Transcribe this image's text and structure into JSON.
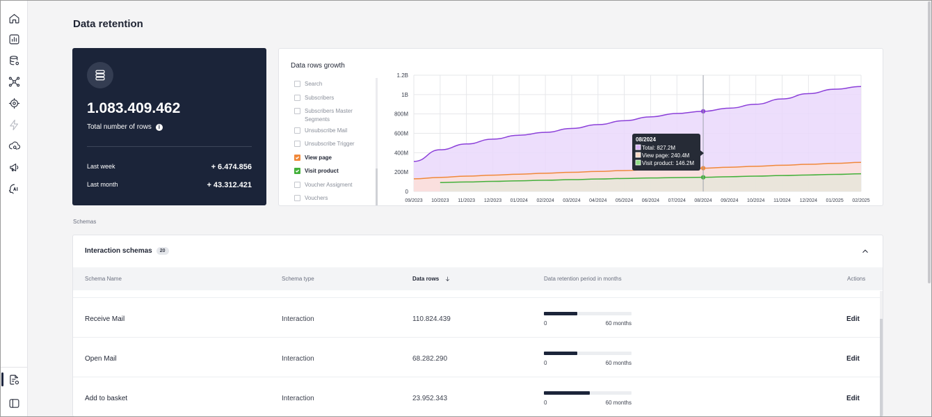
{
  "page": {
    "title": "Data retention"
  },
  "sidebar": {
    "icons": [
      "home-icon",
      "analytics-icon",
      "database-settings-icon",
      "network-icon",
      "target-icon",
      "lightning-icon",
      "cloud-search-icon",
      "megaphone-icon",
      "ai-icon",
      "retention-icon",
      "panel-toggle-icon"
    ]
  },
  "summary": {
    "total_value": "1.083.409.462",
    "total_label": "Total number of rows",
    "last_week_label": "Last week",
    "last_week_value": "+ 6.474.856",
    "last_month_label": "Last month",
    "last_month_value": "+ 43.312.421"
  },
  "chart_card": {
    "title": "Data rows growth",
    "legend": [
      {
        "label": "Search",
        "checked": false
      },
      {
        "label": "Subscribers",
        "checked": false
      },
      {
        "label": "Subscribers Master Segments",
        "checked": false
      },
      {
        "label": "Unsubscribe Mail",
        "checked": false
      },
      {
        "label": "Unsubscribe Trigger",
        "checked": false
      },
      {
        "label": "View page",
        "checked": true,
        "color": "#f0883a"
      },
      {
        "label": "Visit product",
        "checked": true,
        "color": "#43b03a"
      },
      {
        "label": "Voucher Assigment",
        "checked": false
      },
      {
        "label": "Vouchers",
        "checked": false
      }
    ],
    "tooltip": {
      "title": "08/2024",
      "lines": [
        "Total: 827.2M",
        "View page: 240.4M",
        "Visit product: 146.2M"
      ]
    }
  },
  "chart_data": {
    "type": "area",
    "x": [
      "09/2023",
      "10/2023",
      "11/2023",
      "12/2023",
      "01/2024",
      "02/2024",
      "03/2024",
      "04/2024",
      "05/2024",
      "06/2024",
      "07/2024",
      "08/2024",
      "09/2024",
      "10/2024",
      "11/2024",
      "12/2024",
      "01/2025",
      "02/2025"
    ],
    "y_ticks": [
      "0",
      "200M",
      "400M",
      "600M",
      "800M",
      "1B",
      "1.2B"
    ],
    "ylim": [
      0,
      1200
    ],
    "y_unit": "M",
    "series": [
      {
        "name": "Total",
        "color": "#8b3fd9",
        "fill": "#ead8fb",
        "values": [
          310,
          430,
          490,
          540,
          580,
          610,
          650,
          690,
          730,
          770,
          805,
          827.2,
          860,
          900,
          955,
          1010,
          1055,
          1083
        ]
      },
      {
        "name": "View page",
        "color": "#f0883a",
        "fill": "#fbdfd8",
        "values": [
          130,
          145,
          158,
          168,
          178,
          188,
          198,
          207,
          216,
          225,
          233,
          240.4,
          250,
          260,
          270,
          280,
          290,
          300
        ]
      },
      {
        "name": "Visit product",
        "color": "#43b03a",
        "fill": "#e6e6da",
        "values": [
          null,
          92,
          98,
          104,
          110,
          116,
          122,
          128,
          134,
          139,
          143,
          146.2,
          152,
          158,
          164,
          170,
          176,
          182
        ]
      }
    ],
    "highlight_index": 11,
    "grid": true
  },
  "schemas": {
    "section_label": "Schemas",
    "title": "Interaction schemas",
    "count": "20",
    "columns": {
      "name": "Schema Name",
      "type": "Schema type",
      "rows": "Data rows",
      "retention": "Data retention period in months",
      "actions": "Actions"
    },
    "rows": [
      {
        "name": "Receive Mail",
        "type": "Interaction",
        "rows": "110.824.439",
        "retention_fraction": 0.38,
        "min": "0",
        "max": "60 months",
        "action": "Edit"
      },
      {
        "name": "Open Mail",
        "type": "Interaction",
        "rows": "68.282.290",
        "retention_fraction": 0.38,
        "min": "0",
        "max": "60 months",
        "action": "Edit"
      },
      {
        "name": "Add to basket",
        "type": "Interaction",
        "rows": "23.952.343",
        "retention_fraction": 0.52,
        "min": "0",
        "max": "60 months",
        "action": "Edit"
      }
    ]
  }
}
